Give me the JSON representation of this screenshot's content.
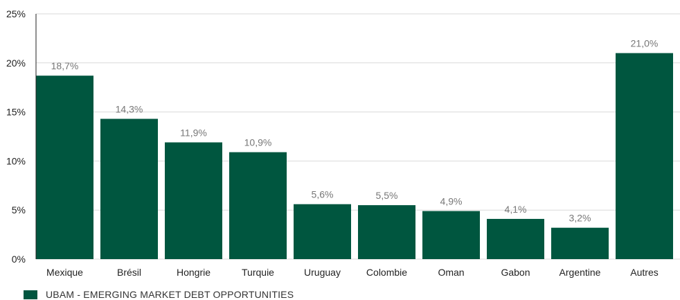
{
  "chart_data": {
    "type": "bar",
    "categories": [
      "Mexique",
      "Brésil",
      "Hongrie",
      "Turquie",
      "Uruguay",
      "Colombie",
      "Oman",
      "Gabon",
      "Argentine",
      "Autres"
    ],
    "series": [
      {
        "name": "UBAM - EMERGING MARKET DEBT OPPORTUNITIES",
        "values": [
          18.7,
          14.3,
          11.9,
          10.9,
          5.6,
          5.5,
          4.9,
          4.1,
          3.2,
          21.0
        ],
        "data_labels": [
          "18,7%",
          "14,3%",
          "11,9%",
          "10,9%",
          "5,6%",
          "5,5%",
          "4,9%",
          "4,1%",
          "3,2%",
          "21,0%"
        ]
      }
    ],
    "ylim": [
      0,
      25
    ],
    "y_ticks": [
      0,
      5,
      10,
      15,
      20,
      25
    ],
    "y_tick_labels": [
      "0%",
      "5%",
      "10%",
      "15%",
      "20%",
      "25%"
    ],
    "grid": true,
    "legend_position": "bottom-left",
    "bar_color": "#00563f",
    "grid_color": "#d9d9d9",
    "axis_color": "#222222"
  }
}
